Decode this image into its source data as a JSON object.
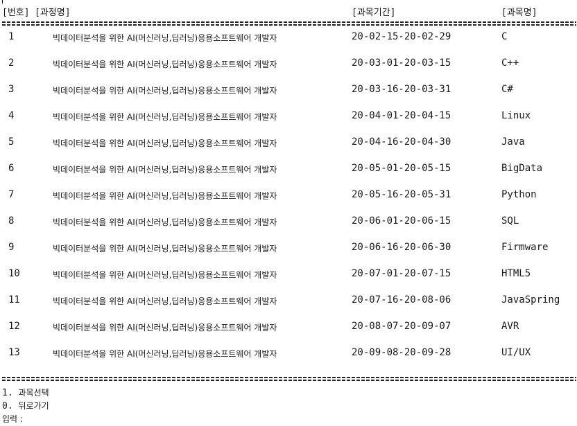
{
  "header": {
    "num": "[번호]",
    "course": "[과정명]",
    "period": "[과목기간]",
    "subject": "[과목명]"
  },
  "rows": [
    {
      "num": "1",
      "course": "빅데이터분석을 위한 AI(머신러닝,딥러닝)응용소프트웨어 개발자",
      "period": "20-02-15-20-02-29",
      "subject": "C"
    },
    {
      "num": "2",
      "course": "빅데이터분석을 위한 AI(머신러닝,딥러닝)응용소프트웨어 개발자",
      "period": "20-03-01-20-03-15",
      "subject": "C++"
    },
    {
      "num": "3",
      "course": "빅데이터분석을 위한 AI(머신러닝,딥러닝)응용소프트웨어 개발자",
      "period": "20-03-16-20-03-31",
      "subject": "C#"
    },
    {
      "num": "4",
      "course": "빅데이터분석을 위한 AI(머신러닝,딥러닝)응용소프트웨어 개발자",
      "period": "20-04-01-20-04-15",
      "subject": "Linux"
    },
    {
      "num": "5",
      "course": "빅데이터분석을 위한 AI(머신러닝,딥러닝)응용소프트웨어 개발자",
      "period": "20-04-16-20-04-30",
      "subject": "Java"
    },
    {
      "num": "6",
      "course": "빅데이터분석을 위한 AI(머신러닝,딥러닝)응용소프트웨어 개발자",
      "period": "20-05-01-20-05-15",
      "subject": "BigData"
    },
    {
      "num": "7",
      "course": "빅데이터분석을 위한 AI(머신러닝,딥러닝)응용소프트웨어 개발자",
      "period": "20-05-16-20-05-31",
      "subject": "Python"
    },
    {
      "num": "8",
      "course": "빅데이터분석을 위한 AI(머신러닝,딥러닝)응용소프트웨어 개발자",
      "period": "20-06-01-20-06-15",
      "subject": "SQL"
    },
    {
      "num": "9",
      "course": "빅데이터분석을 위한 AI(머신러닝,딥러닝)응용소프트웨어 개발자",
      "period": "20-06-16-20-06-30",
      "subject": "Firmware"
    },
    {
      "num": "10",
      "course": "빅데이터분석을 위한 AI(머신러닝,딥러닝)응용소프트웨어 개발자",
      "period": "20-07-01-20-07-15",
      "subject": "HTML5"
    },
    {
      "num": "11",
      "course": "빅데이터분석을 위한 AI(머신러닝,딥러닝)응용소프트웨어 개발자",
      "period": "20-07-16-20-08-06",
      "subject": "JavaSpring"
    },
    {
      "num": "12",
      "course": "빅데이터분석을 위한 AI(머신러닝,딥러닝)응용소프트웨어 개발자",
      "period": "20-08-07-20-09-07",
      "subject": "AVR"
    },
    {
      "num": "13",
      "course": "빅데이터분석을 위한 AI(머신러닝,딥러닝)응용소프트웨어 개발자",
      "period": "20-09-08-20-09-28",
      "subject": "UI/UX"
    }
  ],
  "menu": {
    "option1_key": "1.",
    "option1_label": "과목선택",
    "option0_key": "0.",
    "option0_label": "뒤로가기",
    "prompt": "입력 :"
  }
}
